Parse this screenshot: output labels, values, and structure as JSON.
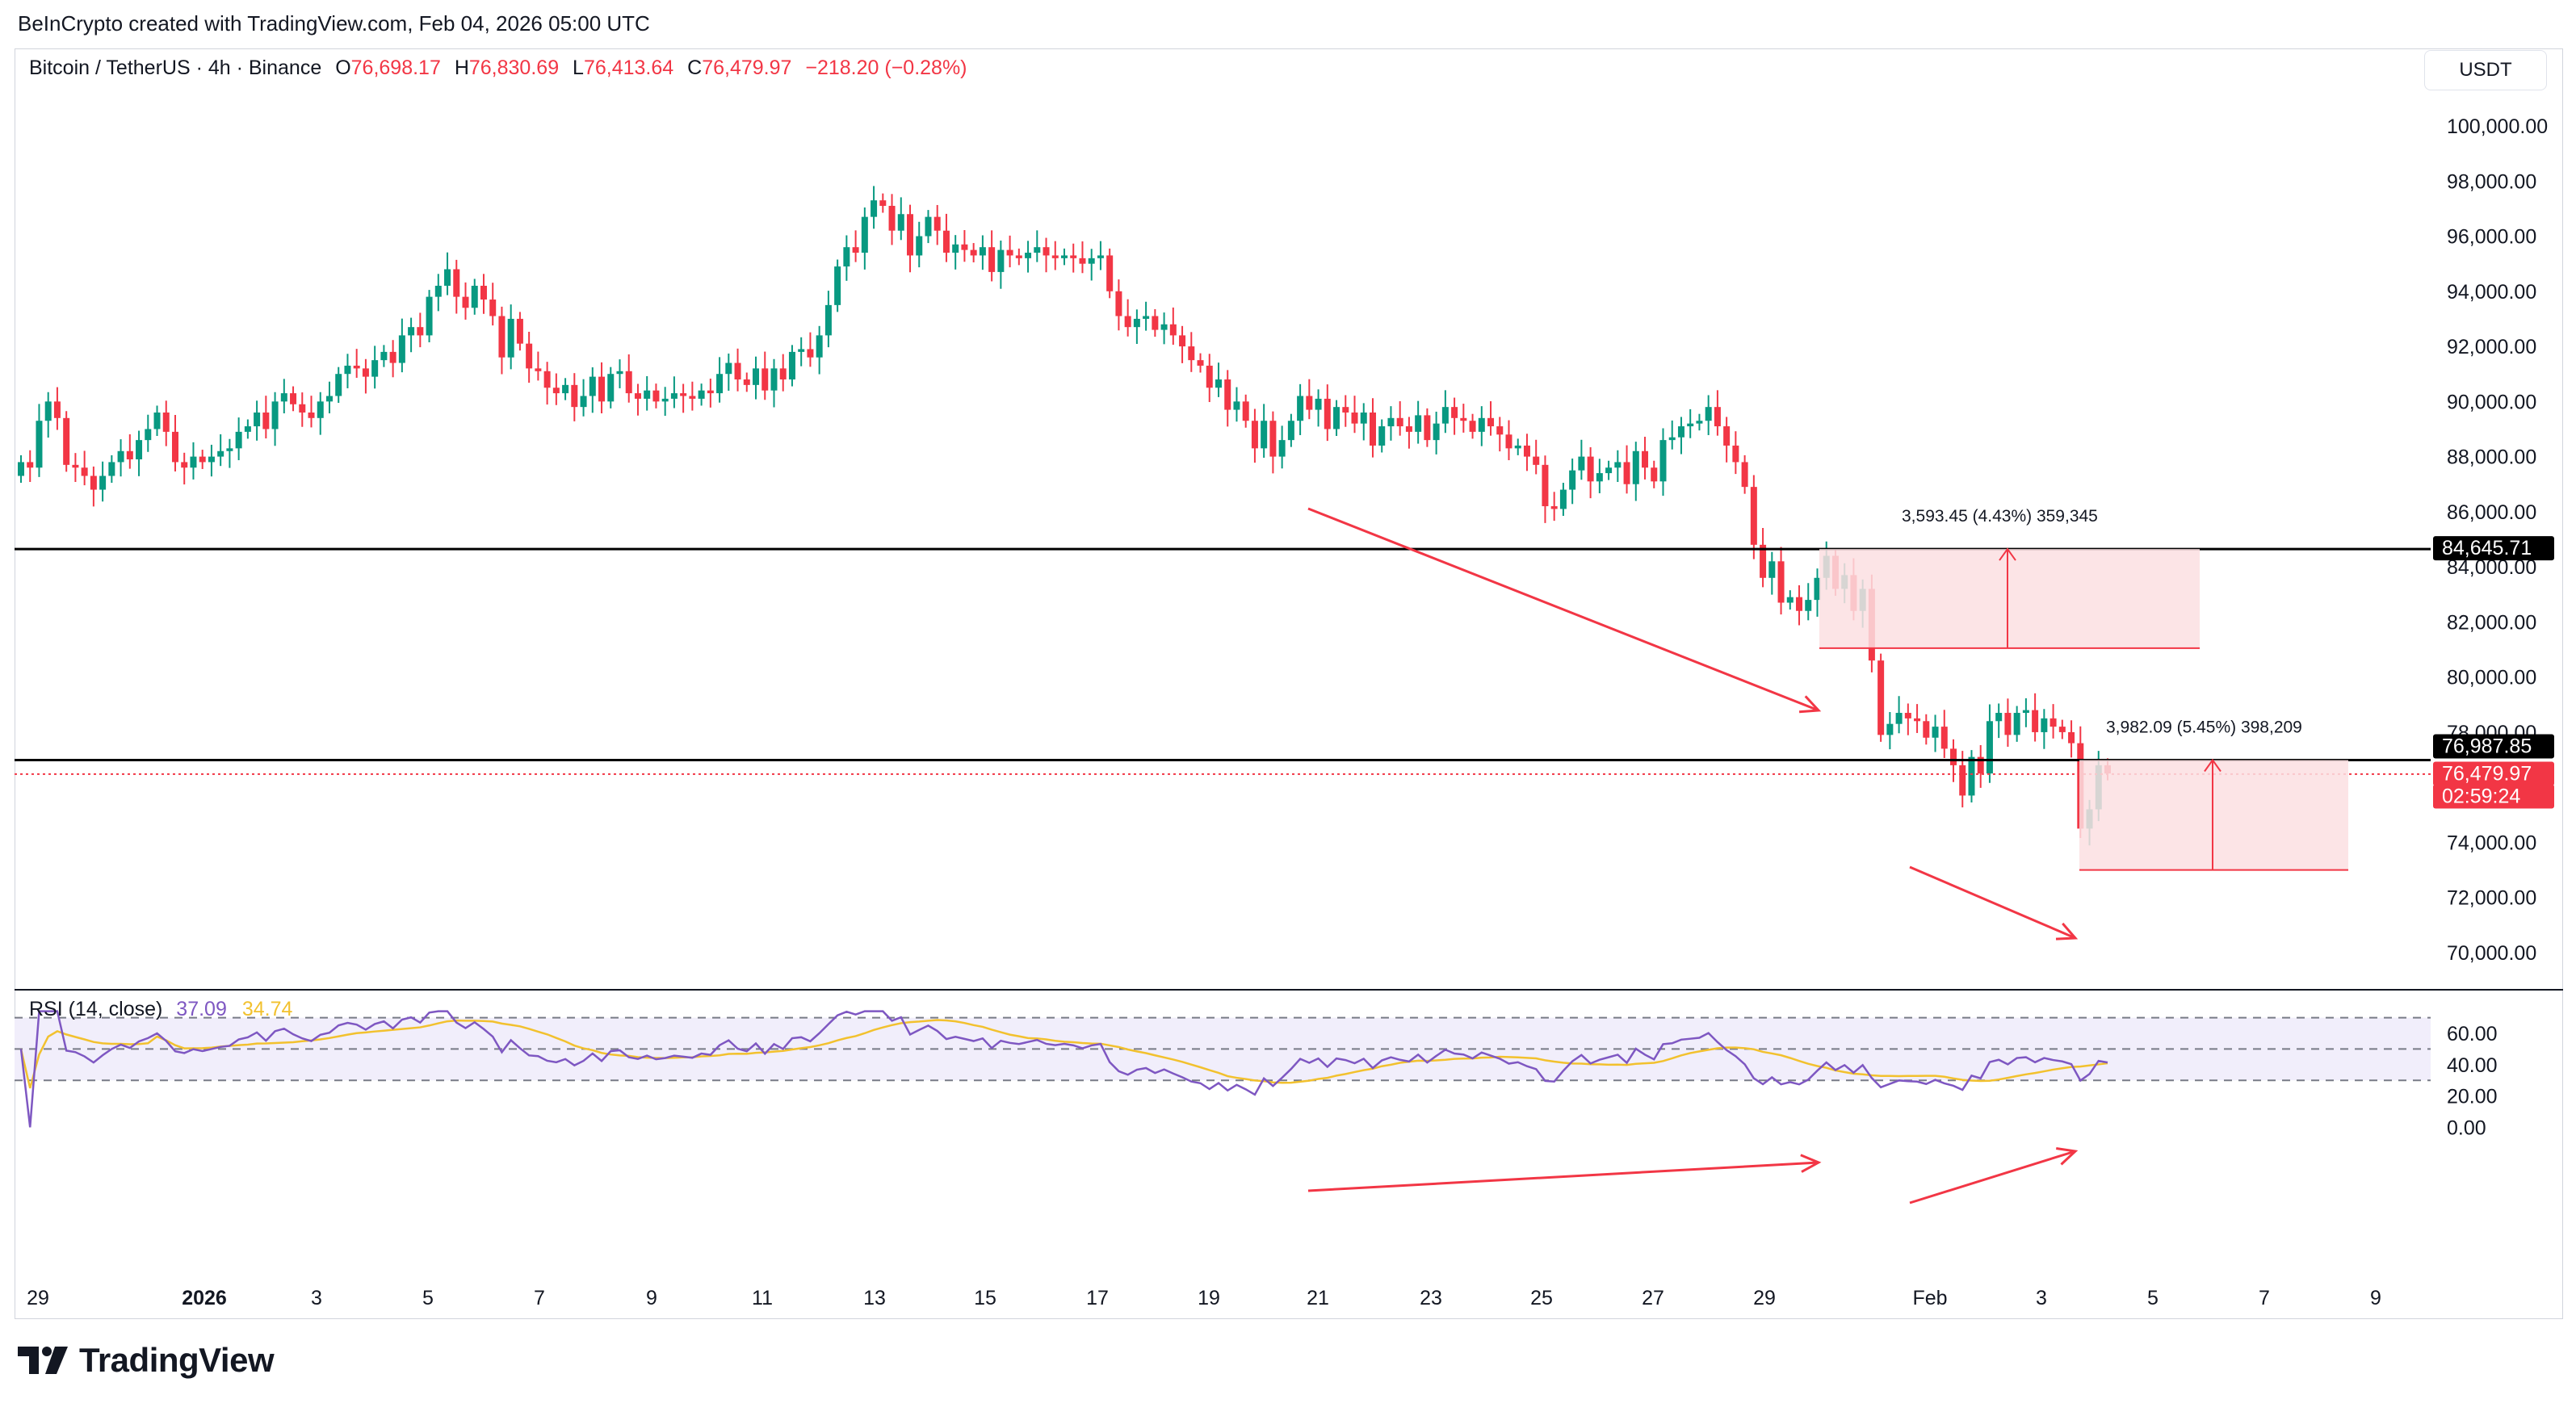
{
  "header": {
    "credit": "BeInCrypto created with TradingView.com, Feb 04, 2026 05:00 UTC"
  },
  "legend": {
    "symbol": "Bitcoin / TetherUS · 4h · Binance",
    "o_label": "O",
    "o_value": "76,698.17",
    "h_label": "H",
    "h_value": "76,830.69",
    "l_label": "L",
    "l_value": "76,413.64",
    "c_label": "C",
    "c_value": "76,479.97",
    "change": "−218.20 (−0.28%)"
  },
  "currency_button": "USDT",
  "price_axis": {
    "ticks": [
      "100,000.00",
      "98,000.00",
      "96,000.00",
      "94,000.00",
      "92,000.00",
      "90,000.00",
      "88,000.00",
      "86,000.00",
      "84,000.00",
      "82,000.00",
      "80,000.00",
      "78,000.00",
      "74,000.00",
      "72,000.00",
      "70,000.00"
    ],
    "tick_values": [
      100000,
      98000,
      96000,
      94000,
      92000,
      90000,
      88000,
      86000,
      84000,
      82000,
      80000,
      78000,
      74000,
      72000,
      70000
    ],
    "labels": [
      {
        "text": "84,645.71",
        "value": 84645.71,
        "bg": "#000000",
        "fg": "#ffffff"
      },
      {
        "text": "76,987.85",
        "value": 76987.85,
        "bg": "#000000",
        "fg": "#ffffff"
      },
      {
        "text": "76,479.97",
        "value": 76479.97,
        "bg": "#f23645",
        "fg": "#ffffff"
      },
      {
        "text": "02:59:24",
        "value": null,
        "bg": "#f23645",
        "fg": "#ffffff"
      }
    ]
  },
  "rsi": {
    "name": "RSI (14, close)",
    "value": "37.09",
    "ma_value": "34.74",
    "axis_ticks": [
      "60.00",
      "40.00",
      "20.00",
      "0.00"
    ],
    "axis_values": [
      60,
      40,
      20,
      0
    ],
    "upper_band": 70,
    "middle_band": 50,
    "lower_band": 30
  },
  "time_axis": {
    "ticks": [
      {
        "text": "29",
        "bold": false
      },
      {
        "text": "2026",
        "bold": true
      },
      {
        "text": "3",
        "bold": false
      },
      {
        "text": "5",
        "bold": false
      },
      {
        "text": "7",
        "bold": false
      },
      {
        "text": "9",
        "bold": false
      },
      {
        "text": "11",
        "bold": false
      },
      {
        "text": "13",
        "bold": false
      },
      {
        "text": "15",
        "bold": false
      },
      {
        "text": "17",
        "bold": false
      },
      {
        "text": "19",
        "bold": false
      },
      {
        "text": "21",
        "bold": false
      },
      {
        "text": "23",
        "bold": false
      },
      {
        "text": "25",
        "bold": false
      },
      {
        "text": "27",
        "bold": false
      },
      {
        "text": "29",
        "bold": false
      },
      {
        "text": "Feb",
        "bold": false
      },
      {
        "text": "3",
        "bold": false
      },
      {
        "text": "5",
        "bold": false
      },
      {
        "text": "7",
        "bold": false
      },
      {
        "text": "9",
        "bold": false
      }
    ]
  },
  "annotations": {
    "measure1": "3,593.45 (4.43%) 359,345",
    "measure2": "3,982.09 (5.45%) 398,209"
  },
  "colors": {
    "up": "#089981",
    "down": "#f23645",
    "rsi_line": "#7e57c2",
    "rsi_ma": "#f2c12e",
    "rsi_band_fill": "#f1eefb",
    "measure_fill": "#fcdfe2",
    "arrow": "#f23645",
    "level_line": "#000000"
  },
  "footer": {
    "brand": "TradingView"
  },
  "chart_data": {
    "type": "candlestick",
    "interval": "4h",
    "price_range": [
      69000,
      101500
    ],
    "levels": [
      84645.71,
      76987.85
    ],
    "last_price": 76479.97,
    "closes": [
      87800,
      87600,
      89300,
      90000,
      89400,
      87700,
      87600,
      87300,
      86800,
      87300,
      87800,
      88200,
      87900,
      88600,
      89000,
      89600,
      88900,
      87800,
      87600,
      88000,
      87800,
      88000,
      88200,
      88300,
      88900,
      89100,
      89600,
      89000,
      90000,
      90300,
      89900,
      89600,
      89400,
      90000,
      90200,
      91000,
      91300,
      91200,
      90900,
      91500,
      91800,
      91400,
      92400,
      92700,
      92400,
      93800,
      94200,
      94800,
      93800,
      93400,
      94200,
      93700,
      93100,
      91600,
      93000,
      92100,
      91200,
      91100,
      90500,
      90300,
      90600,
      89800,
      90200,
      90900,
      90000,
      91000,
      91100,
      90300,
      90100,
      90400,
      90000,
      90100,
      90300,
      90200,
      90100,
      90400,
      90300,
      91000,
      91400,
      90800,
      90600,
      91200,
      90400,
      91200,
      90800,
      91800,
      91900,
      91600,
      92400,
      93500,
      94900,
      95600,
      95400,
      96700,
      97300,
      97100,
      96200,
      96800,
      95300,
      96000,
      96700,
      96200,
      95400,
      95700,
      95500,
      95300,
      95600,
      94700,
      95500,
      95300,
      95200,
      95400,
      95600,
      95300,
      95200,
      95300,
      95200,
      95000,
      95200,
      95300,
      94000,
      93100,
      92700,
      93000,
      93100,
      92600,
      92800,
      92400,
      92000,
      91500,
      91300,
      90500,
      90800,
      89700,
      90000,
      89300,
      88300,
      89300,
      88000,
      88600,
      89300,
      90200,
      89700,
      90100,
      89000,
      89800,
      89600,
      89200,
      89600,
      88400,
      89100,
      89400,
      89100,
      88900,
      89500,
      88600,
      89200,
      89800,
      89400,
      89300,
      88900,
      89400,
      89100,
      88800,
      88300,
      88400,
      88000,
      87700,
      86200,
      86100,
      86800,
      87500,
      88000,
      87100,
      87400,
      87600,
      87800,
      87000,
      88200,
      87600,
      87100,
      88600,
      88700,
      89100,
      89200,
      89300,
      89800,
      89100,
      88400,
      87800,
      86900,
      84800,
      83600,
      84200,
      82700,
      82900,
      82400,
      82800,
      83600,
      84400,
      83200,
      83700,
      82400,
      83200,
      80600,
      77900,
      78300,
      78700,
      78500,
      78400,
      77800,
      78200,
      77400,
      76800,
      75700,
      77100,
      76500,
      78400,
      78700,
      77900,
      78700,
      78800,
      78000,
      78500,
      78200,
      78000,
      77600,
      74500,
      75200,
      76800,
      76500
    ]
  }
}
